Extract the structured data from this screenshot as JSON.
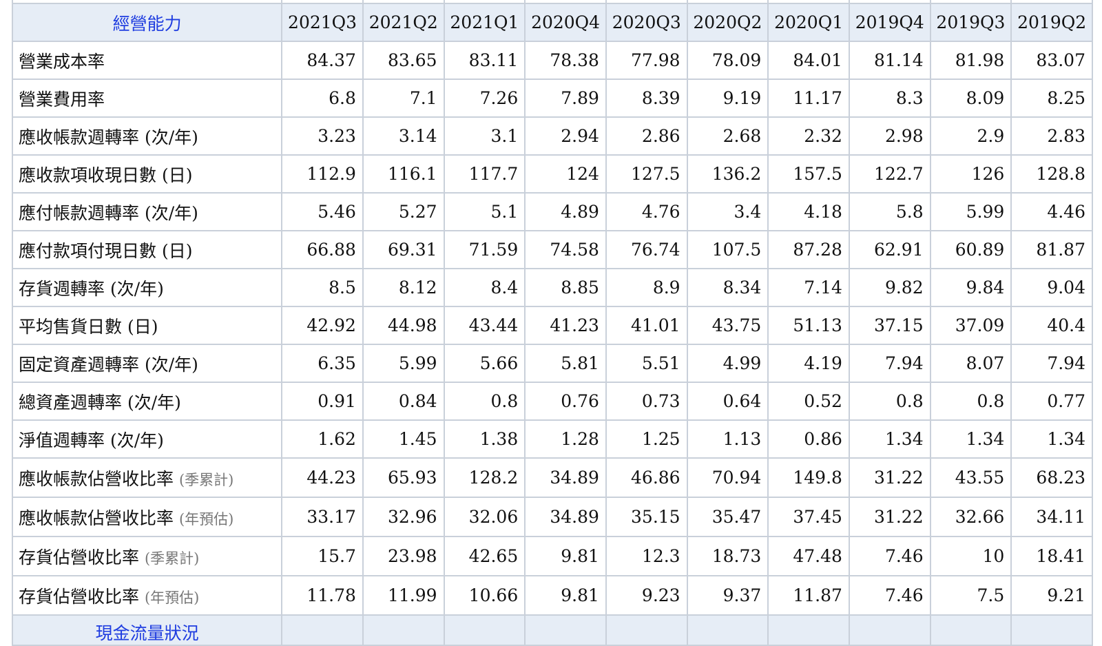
{
  "table": {
    "header_label": "經營能力",
    "columns": [
      "2021Q3",
      "2021Q2",
      "2021Q1",
      "2020Q4",
      "2020Q3",
      "2020Q2",
      "2020Q1",
      "2019Q4",
      "2019Q3",
      "2019Q2"
    ],
    "rows": [
      {
        "label": "營業成本率",
        "note": "",
        "values": [
          "84.37",
          "83.65",
          "83.11",
          "78.38",
          "77.98",
          "78.09",
          "84.01",
          "81.14",
          "81.98",
          "83.07"
        ]
      },
      {
        "label": "營業費用率",
        "note": "",
        "values": [
          "6.8",
          "7.1",
          "7.26",
          "7.89",
          "8.39",
          "9.19",
          "11.17",
          "8.3",
          "8.09",
          "8.25"
        ]
      },
      {
        "label": "應收帳款週轉率 (次/年)",
        "note": "",
        "values": [
          "3.23",
          "3.14",
          "3.1",
          "2.94",
          "2.86",
          "2.68",
          "2.32",
          "2.98",
          "2.9",
          "2.83"
        ]
      },
      {
        "label": "應收款項收現日數 (日)",
        "note": "",
        "values": [
          "112.9",
          "116.1",
          "117.7",
          "124",
          "127.5",
          "136.2",
          "157.5",
          "122.7",
          "126",
          "128.8"
        ]
      },
      {
        "label": "應付帳款週轉率 (次/年)",
        "note": "",
        "values": [
          "5.46",
          "5.27",
          "5.1",
          "4.89",
          "4.76",
          "3.4",
          "4.18",
          "5.8",
          "5.99",
          "4.46"
        ]
      },
      {
        "label": "應付款項付現日數 (日)",
        "note": "",
        "values": [
          "66.88",
          "69.31",
          "71.59",
          "74.58",
          "76.74",
          "107.5",
          "87.28",
          "62.91",
          "60.89",
          "81.87"
        ]
      },
      {
        "label": "存貨週轉率 (次/年)",
        "note": "",
        "values": [
          "8.5",
          "8.12",
          "8.4",
          "8.85",
          "8.9",
          "8.34",
          "7.14",
          "9.82",
          "9.84",
          "9.04"
        ]
      },
      {
        "label": "平均售貨日數 (日)",
        "note": "",
        "values": [
          "42.92",
          "44.98",
          "43.44",
          "41.23",
          "41.01",
          "43.75",
          "51.13",
          "37.15",
          "37.09",
          "40.4"
        ]
      },
      {
        "label": "固定資產週轉率 (次/年)",
        "note": "",
        "values": [
          "6.35",
          "5.99",
          "5.66",
          "5.81",
          "5.51",
          "4.99",
          "4.19",
          "7.94",
          "8.07",
          "7.94"
        ]
      },
      {
        "label": "總資產週轉率 (次/年)",
        "note": "",
        "values": [
          "0.91",
          "0.84",
          "0.8",
          "0.76",
          "0.73",
          "0.64",
          "0.52",
          "0.8",
          "0.8",
          "0.77"
        ]
      },
      {
        "label": "淨值週轉率 (次/年)",
        "note": "",
        "values": [
          "1.62",
          "1.45",
          "1.38",
          "1.28",
          "1.25",
          "1.13",
          "0.86",
          "1.34",
          "1.34",
          "1.34"
        ]
      },
      {
        "label": "應收帳款佔營收比率",
        "note": "(季累計)",
        "values": [
          "44.23",
          "65.93",
          "128.2",
          "34.89",
          "46.86",
          "70.94",
          "149.8",
          "31.22",
          "43.55",
          "68.23"
        ]
      },
      {
        "label": "應收帳款佔營收比率",
        "note": "(年預估)",
        "values": [
          "33.17",
          "32.96",
          "32.06",
          "34.89",
          "35.15",
          "35.47",
          "37.45",
          "31.22",
          "32.66",
          "34.11"
        ]
      },
      {
        "label": "存貨佔營收比率",
        "note": "(季累計)",
        "values": [
          "15.7",
          "23.98",
          "42.65",
          "9.81",
          "12.3",
          "18.73",
          "47.48",
          "7.46",
          "10",
          "18.41"
        ]
      },
      {
        "label": "存貨佔營收比率",
        "note": "(年預估)",
        "values": [
          "11.78",
          "11.99",
          "10.66",
          "9.81",
          "9.23",
          "9.37",
          "11.87",
          "7.46",
          "7.5",
          "9.21"
        ]
      }
    ],
    "footer_label": "現金流量狀況"
  }
}
